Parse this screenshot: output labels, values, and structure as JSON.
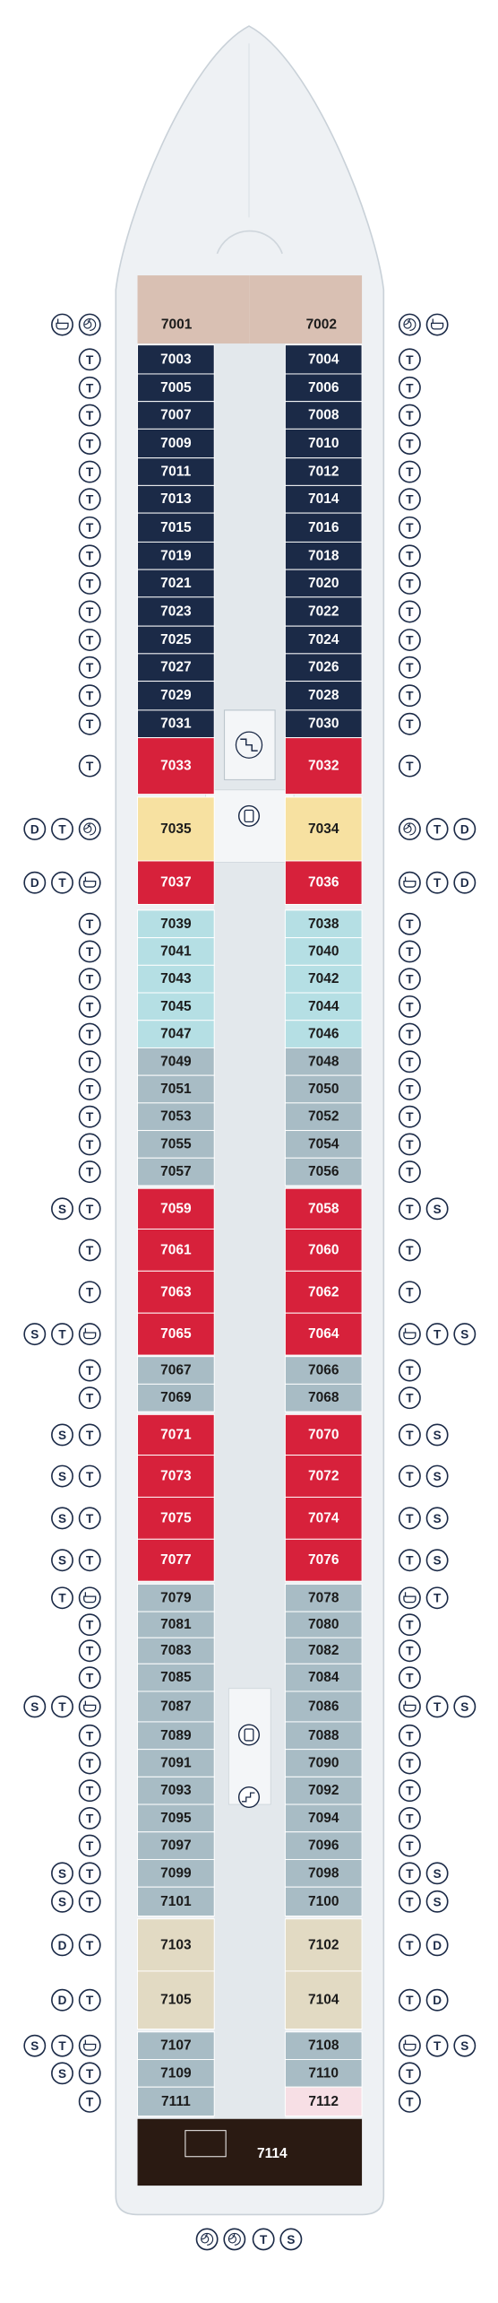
{
  "rows": [
    {
      "left": {
        "number": "7001",
        "color": "#d9c0b3"
      },
      "right": {
        "number": "7002",
        "color": "#d9c0b3"
      }
    },
    {
      "left": {
        "number": "7003",
        "color": "#1b2a47"
      },
      "right": {
        "number": "7004",
        "color": "#1b2a47"
      },
      "left_icons": [
        "T"
      ],
      "right_icons": [
        "T"
      ]
    },
    {
      "left": {
        "number": "7005",
        "color": "#1b2a47"
      },
      "right": {
        "number": "7006",
        "color": "#1b2a47"
      },
      "left_icons": [
        "T"
      ],
      "right_icons": [
        "T"
      ]
    },
    {
      "left": {
        "number": "7007",
        "color": "#1b2a47"
      },
      "right": {
        "number": "7008",
        "color": "#1b2a47"
      },
      "left_icons": [
        "T"
      ],
      "right_icons": [
        "T"
      ]
    },
    {
      "left": {
        "number": "7009",
        "color": "#1b2a47"
      },
      "right": {
        "number": "7010",
        "color": "#1b2a47"
      },
      "left_icons": [
        "T"
      ],
      "right_icons": [
        "T"
      ]
    },
    {
      "left": {
        "number": "7011",
        "color": "#1b2a47"
      },
      "right": {
        "number": "7012",
        "color": "#1b2a47"
      },
      "left_icons": [
        "T"
      ],
      "right_icons": [
        "T"
      ]
    },
    {
      "left": {
        "number": "7013",
        "color": "#1b2a47"
      },
      "right": {
        "number": "7014",
        "color": "#1b2a47"
      },
      "left_icons": [
        "T"
      ],
      "right_icons": [
        "T"
      ]
    },
    {
      "left": {
        "number": "7015",
        "color": "#1b2a47"
      },
      "right": {
        "number": "7016",
        "color": "#1b2a47"
      },
      "left_icons": [
        "T"
      ],
      "right_icons": [
        "T"
      ]
    },
    {
      "left": {
        "number": "7019",
        "color": "#1b2a47"
      },
      "right": {
        "number": "7018",
        "color": "#1b2a47"
      },
      "left_icons": [
        "T"
      ],
      "right_icons": [
        "T"
      ]
    },
    {
      "left": {
        "number": "7021",
        "color": "#1b2a47"
      },
      "right": {
        "number": "7020",
        "color": "#1b2a47"
      },
      "left_icons": [
        "T"
      ],
      "right_icons": [
        "T"
      ]
    },
    {
      "left": {
        "number": "7023",
        "color": "#1b2a47"
      },
      "right": {
        "number": "7022",
        "color": "#1b2a47"
      },
      "left_icons": [
        "T"
      ],
      "right_icons": [
        "T"
      ]
    },
    {
      "left": {
        "number": "7025",
        "color": "#1b2a47"
      },
      "right": {
        "number": "7024",
        "color": "#1b2a47"
      },
      "left_icons": [
        "T"
      ],
      "right_icons": [
        "T"
      ]
    },
    {
      "left": {
        "number": "7027",
        "color": "#1b2a47"
      },
      "right": {
        "number": "7026",
        "color": "#1b2a47"
      },
      "left_icons": [
        "T"
      ],
      "right_icons": [
        "T"
      ]
    },
    {
      "left": {
        "number": "7029",
        "color": "#1b2a47"
      },
      "right": {
        "number": "7028",
        "color": "#1b2a47"
      },
      "left_icons": [
        "T"
      ],
      "right_icons": [
        "T"
      ]
    },
    {
      "left": {
        "number": "7031",
        "color": "#1b2a47"
      },
      "right": {
        "number": "7030",
        "color": "#1b2a47"
      },
      "left_icons": [
        "T"
      ],
      "right_icons": [
        "T"
      ]
    },
    {
      "left": {
        "number": "7033",
        "color": "#d7213b"
      },
      "right": {
        "number": "7032",
        "color": "#d7213b"
      },
      "left_icons": [
        "T"
      ],
      "right_icons": [
        "T"
      ]
    },
    {
      "left": {
        "number": "7035",
        "color": "#f7e1a1"
      },
      "right": {
        "number": "7034",
        "color": "#f7e1a1"
      },
      "left_icons": [
        "D",
        "T"
      ],
      "right_icons": [
        "T",
        "D"
      ]
    },
    {
      "left": {
        "number": "7037",
        "color": "#d7213b"
      },
      "right": {
        "number": "7036",
        "color": "#d7213b"
      },
      "left_icons": [
        "D",
        "T"
      ],
      "right_icons": [
        "T",
        "D"
      ]
    },
    {
      "left": {
        "number": "7039",
        "color": "#b5dfe4"
      },
      "right": {
        "number": "7038",
        "color": "#b5dfe4"
      },
      "left_icons": [
        "T"
      ],
      "right_icons": [
        "T"
      ]
    },
    {
      "left": {
        "number": "7041",
        "color": "#b5dfe4"
      },
      "right": {
        "number": "7040",
        "color": "#b5dfe4"
      },
      "left_icons": [
        "T"
      ],
      "right_icons": [
        "T"
      ]
    },
    {
      "left": {
        "number": "7043",
        "color": "#b5dfe4"
      },
      "right": {
        "number": "7042",
        "color": "#b5dfe4"
      },
      "left_icons": [
        "T"
      ],
      "right_icons": [
        "T"
      ]
    },
    {
      "left": {
        "number": "7045",
        "color": "#b5dfe4"
      },
      "right": {
        "number": "7044",
        "color": "#b5dfe4"
      },
      "left_icons": [
        "T"
      ],
      "right_icons": [
        "T"
      ]
    },
    {
      "left": {
        "number": "7047",
        "color": "#b5dfe4"
      },
      "right": {
        "number": "7046",
        "color": "#b5dfe4"
      },
      "left_icons": [
        "T"
      ],
      "right_icons": [
        "T"
      ]
    },
    {
      "left": {
        "number": "7049",
        "color": "#a8bcc5"
      },
      "right": {
        "number": "7048",
        "color": "#a8bcc5"
      },
      "left_icons": [
        "T"
      ],
      "right_icons": [
        "T"
      ]
    },
    {
      "left": {
        "number": "7051",
        "color": "#a8bcc5"
      },
      "right": {
        "number": "7050",
        "color": "#a8bcc5"
      },
      "left_icons": [
        "T"
      ],
      "right_icons": [
        "T"
      ]
    },
    {
      "left": {
        "number": "7053",
        "color": "#a8bcc5"
      },
      "right": {
        "number": "7052",
        "color": "#a8bcc5"
      },
      "left_icons": [
        "T"
      ],
      "right_icons": [
        "T"
      ]
    },
    {
      "left": {
        "number": "7055",
        "color": "#a8bcc5"
      },
      "right": {
        "number": "7054",
        "color": "#a8bcc5"
      },
      "left_icons": [
        "T"
      ],
      "right_icons": [
        "T"
      ]
    },
    {
      "left": {
        "number": "7057",
        "color": "#a8bcc5"
      },
      "right": {
        "number": "7056",
        "color": "#a8bcc5"
      },
      "left_icons": [
        "T"
      ],
      "right_icons": [
        "T"
      ]
    },
    {
      "left": {
        "number": "7059",
        "color": "#d7213b"
      },
      "right": {
        "number": "7058",
        "color": "#d7213b"
      },
      "left_icons": [
        "S",
        "T"
      ],
      "right_icons": [
        "T",
        "S"
      ]
    },
    {
      "left": {
        "number": "7061",
        "color": "#d7213b"
      },
      "right": {
        "number": "7060",
        "color": "#d7213b"
      },
      "left_icons": [
        "T"
      ],
      "right_icons": [
        "T"
      ]
    },
    {
      "left": {
        "number": "7063",
        "color": "#d7213b"
      },
      "right": {
        "number": "7062",
        "color": "#d7213b"
      },
      "left_icons": [
        "T"
      ],
      "right_icons": [
        "T"
      ]
    },
    {
      "left": {
        "number": "7065",
        "color": "#d7213b"
      },
      "right": {
        "number": "7064",
        "color": "#d7213b"
      },
      "left_icons": [
        "S",
        "T"
      ],
      "right_icons": [
        "T",
        "S"
      ]
    },
    {
      "left": {
        "number": "7067",
        "color": "#a8bcc5"
      },
      "right": {
        "number": "7066",
        "color": "#a8bcc5"
      },
      "left_icons": [
        "T"
      ],
      "right_icons": [
        "T"
      ]
    },
    {
      "left": {
        "number": "7069",
        "color": "#a8bcc5"
      },
      "right": {
        "number": "7068",
        "color": "#a8bcc5"
      },
      "left_icons": [
        "T"
      ],
      "right_icons": [
        "T"
      ]
    },
    {
      "left": {
        "number": "7071",
        "color": "#d7213b"
      },
      "right": {
        "number": "7070",
        "color": "#d7213b"
      },
      "left_icons": [
        "S",
        "T"
      ],
      "right_icons": [
        "T",
        "S"
      ]
    },
    {
      "left": {
        "number": "7073",
        "color": "#d7213b"
      },
      "right": {
        "number": "7072",
        "color": "#d7213b"
      },
      "left_icons": [
        "S",
        "T"
      ],
      "right_icons": [
        "T",
        "S"
      ]
    },
    {
      "left": {
        "number": "7075",
        "color": "#d7213b"
      },
      "right": {
        "number": "7074",
        "color": "#d7213b"
      },
      "left_icons": [
        "S",
        "T"
      ],
      "right_icons": [
        "T",
        "S"
      ]
    },
    {
      "left": {
        "number": "7077",
        "color": "#d7213b"
      },
      "right": {
        "number": "7076",
        "color": "#d7213b"
      },
      "left_icons": [
        "S",
        "T"
      ],
      "right_icons": [
        "T",
        "S"
      ]
    },
    {
      "left": {
        "number": "7079",
        "color": "#a8bcc5"
      },
      "right": {
        "number": "7078",
        "color": "#a8bcc5"
      },
      "left_icons": [
        "T"
      ],
      "right_icons": [
        "T"
      ]
    },
    {
      "left": {
        "number": "7081",
        "color": "#a8bcc5"
      },
      "right": {
        "number": "7080",
        "color": "#a8bcc5"
      },
      "left_icons": [
        "T"
      ],
      "right_icons": [
        "T"
      ]
    },
    {
      "left": {
        "number": "7083",
        "color": "#a8bcc5"
      },
      "right": {
        "number": "7082",
        "color": "#a8bcc5"
      },
      "left_icons": [
        "T"
      ],
      "right_icons": [
        "T"
      ]
    },
    {
      "left": {
        "number": "7085",
        "color": "#a8bcc5"
      },
      "right": {
        "number": "7084",
        "color": "#a8bcc5"
      },
      "left_icons": [
        "T"
      ],
      "right_icons": [
        "T"
      ]
    },
    {
      "left": {
        "number": "7087",
        "color": "#a8bcc5"
      },
      "right": {
        "number": "7086",
        "color": "#a8bcc5"
      },
      "left_icons": [
        "S",
        "T"
      ],
      "right_icons": [
        "T",
        "S"
      ]
    },
    {
      "left": {
        "number": "7089",
        "color": "#a8bcc5"
      },
      "right": {
        "number": "7088",
        "color": "#a8bcc5"
      },
      "left_icons": [
        "T"
      ],
      "right_icons": [
        "T"
      ]
    },
    {
      "left": {
        "number": "7091",
        "color": "#a8bcc5"
      },
      "right": {
        "number": "7090",
        "color": "#a8bcc5"
      },
      "left_icons": [
        "T"
      ],
      "right_icons": [
        "T"
      ]
    },
    {
      "left": {
        "number": "7093",
        "color": "#a8bcc5"
      },
      "right": {
        "number": "7092",
        "color": "#a8bcc5"
      },
      "left_icons": [
        "T"
      ],
      "right_icons": [
        "T"
      ]
    },
    {
      "left": {
        "number": "7095",
        "color": "#a8bcc5"
      },
      "right": {
        "number": "7094",
        "color": "#a8bcc5"
      },
      "left_icons": [
        "T"
      ],
      "right_icons": [
        "T"
      ]
    },
    {
      "left": {
        "number": "7097",
        "color": "#a8bcc5"
      },
      "right": {
        "number": "7096",
        "color": "#a8bcc5"
      },
      "left_icons": [
        "T"
      ],
      "right_icons": [
        "T"
      ]
    },
    {
      "left": {
        "number": "7099",
        "color": "#a8bcc5"
      },
      "right": {
        "number": "7098",
        "color": "#a8bcc5"
      },
      "left_icons": [
        "S",
        "T"
      ],
      "right_icons": [
        "T",
        "S"
      ]
    },
    {
      "left": {
        "number": "7101",
        "color": "#a8bcc5"
      },
      "right": {
        "number": "7100",
        "color": "#a8bcc5"
      },
      "left_icons": [
        "S",
        "T"
      ],
      "right_icons": [
        "T",
        "S"
      ]
    },
    {
      "left": {
        "number": "7103",
        "color": "#e2dac3"
      },
      "right": {
        "number": "7102",
        "color": "#e2dac3"
      },
      "left_icons": [
        "D",
        "T"
      ],
      "right_icons": [
        "T",
        "D"
      ]
    },
    {
      "left": {
        "number": "7105",
        "color": "#e2dac3"
      },
      "right": {
        "number": "7104",
        "color": "#e2dac3"
      },
      "left_icons": [
        "D",
        "T"
      ],
      "right_icons": [
        "T",
        "D"
      ]
    },
    {
      "left": {
        "number": "7107",
        "color": "#a8bcc5"
      },
      "right": {
        "number": "7108",
        "color": "#a8bcc5"
      },
      "left_icons": [
        "S",
        "T"
      ],
      "right_icons": [
        "T",
        "S"
      ]
    },
    {
      "left": {
        "number": "7109",
        "color": "#a8bcc5"
      },
      "right": {
        "number": "7110",
        "color": "#a8bcc5"
      },
      "left_icons": [
        "S",
        "T"
      ],
      "right_icons": [
        "T"
      ]
    },
    {
      "left": {
        "number": "7111",
        "color": "#a8bcc5"
      },
      "right": {
        "number": "7112",
        "color": "#f7dfe5"
      },
      "left_icons": [
        "T"
      ],
      "right_icons": [
        "T"
      ]
    }
  ],
  "aft_suite": {
    "number": "7114",
    "color": "#2a1a12"
  },
  "bottom_icons": [
    "T",
    "S"
  ]
}
